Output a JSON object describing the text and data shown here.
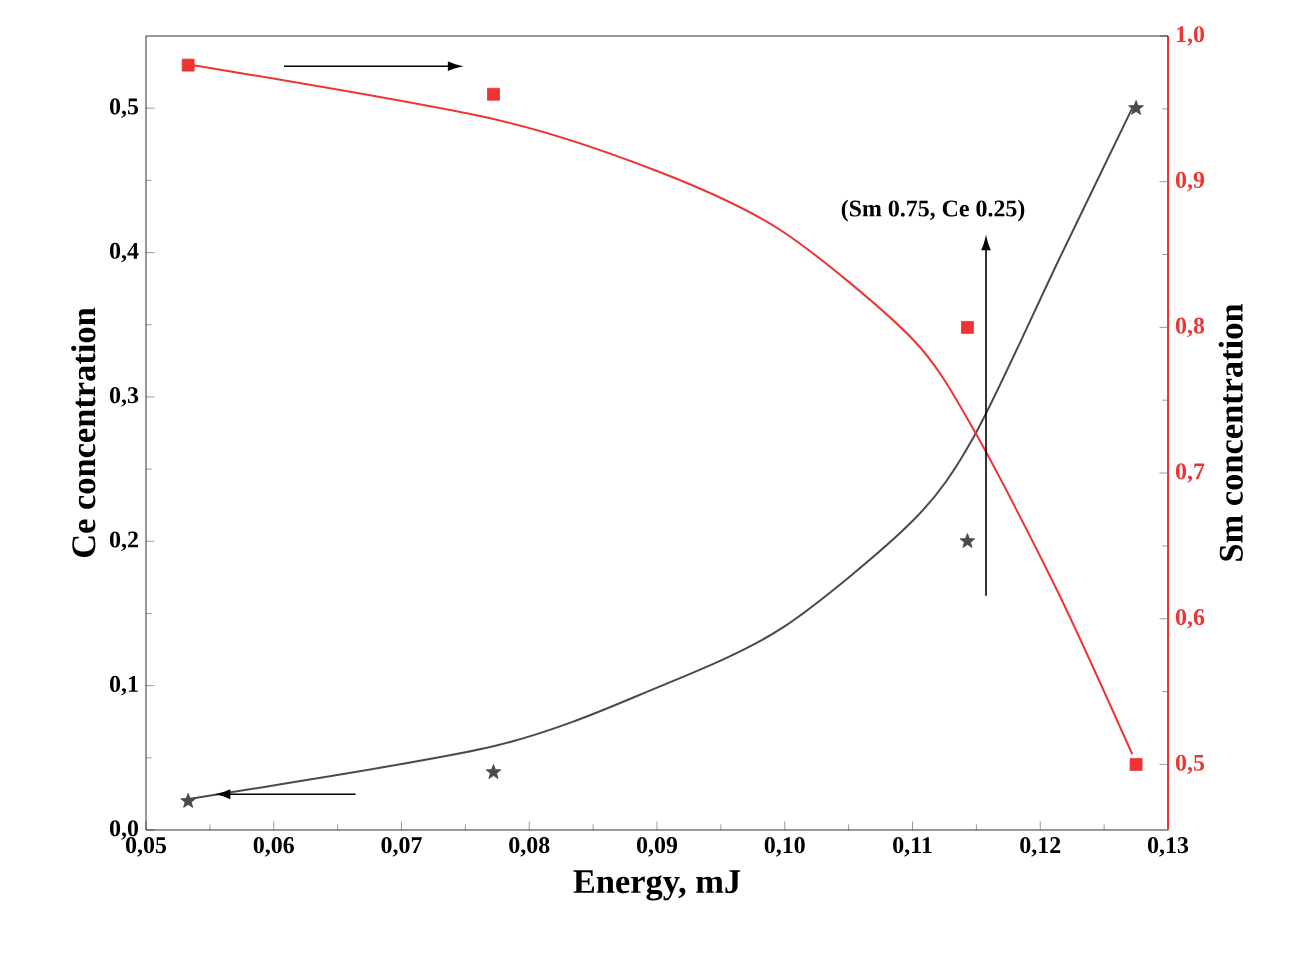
{
  "chart_data": {
    "type": "scatter",
    "xlabel": "Energy, mJ",
    "ylabel": "Ce concentration",
    "y2label": "Sm concentration",
    "xlim": [
      0.05,
      0.13
    ],
    "xticks": [
      {
        "value": 0.05,
        "label": "0,05"
      },
      {
        "value": 0.06,
        "label": "0,06"
      },
      {
        "value": 0.07,
        "label": "0,07"
      },
      {
        "value": 0.08,
        "label": "0,08"
      },
      {
        "value": 0.09,
        "label": "0,09"
      },
      {
        "value": 0.1,
        "label": "0,10"
      },
      {
        "value": 0.11,
        "label": "0,11"
      },
      {
        "value": 0.12,
        "label": "0,12"
      },
      {
        "value": 0.13,
        "label": "0,13"
      }
    ],
    "ylim": [
      0,
      0.55
    ],
    "yticks": [
      {
        "value": 0,
        "label": "0,0"
      },
      {
        "value": 0.1,
        "label": "0,1"
      },
      {
        "value": 0.2,
        "label": "0,2"
      },
      {
        "value": 0.3,
        "label": "0,3"
      },
      {
        "value": 0.4,
        "label": "0,4"
      },
      {
        "value": 0.5,
        "label": "0,5"
      }
    ],
    "y2lim": [
      0.455,
      1.0
    ],
    "y2ticks": [
      {
        "value": 0.5,
        "label": "0,5"
      },
      {
        "value": 0.6,
        "label": "0,6"
      },
      {
        "value": 0.7,
        "label": "0,7"
      },
      {
        "value": 0.8,
        "label": "0,8"
      },
      {
        "value": 0.9,
        "label": "0,9"
      },
      {
        "value": 1.0,
        "label": "1,0"
      }
    ],
    "x": [
      0.0533,
      0.0772,
      0.1143,
      0.1275
    ],
    "annotations": [
      "(Sm 0.75, Ce 0.25)"
    ],
    "series": [
      {
        "marker": "star",
        "color": "#4a4a4a",
        "values": [
          0.02,
          0.04,
          0.2,
          0.5
        ]
      },
      {
        "type": "line",
        "marker": "none",
        "color": "#4a4a4a",
        "x": [
          0.053,
          0.0772,
          0.0901,
          0.0998,
          0.11,
          0.1149,
          0.1214,
          0.1272
        ],
        "values": [
          0.021,
          0.058,
          0.099,
          0.14,
          0.214,
          0.274,
          0.394,
          0.5
        ]
      },
      {
        "marker": "square",
        "axis": "y2",
        "color": "#ee3333",
        "values": [
          0.98,
          0.96,
          0.8,
          0.5
        ]
      },
      {
        "type": "line",
        "marker": "none",
        "axis": "y2",
        "color": "#ee3333",
        "x": [
          0.053,
          0.0772,
          0.0901,
          0.0998,
          0.11,
          0.1149,
          0.1214,
          0.1272
        ],
        "values": [
          0.981,
          0.943,
          0.907,
          0.866,
          0.792,
          0.728,
          0.618,
          0.507
        ]
      }
    ]
  }
}
